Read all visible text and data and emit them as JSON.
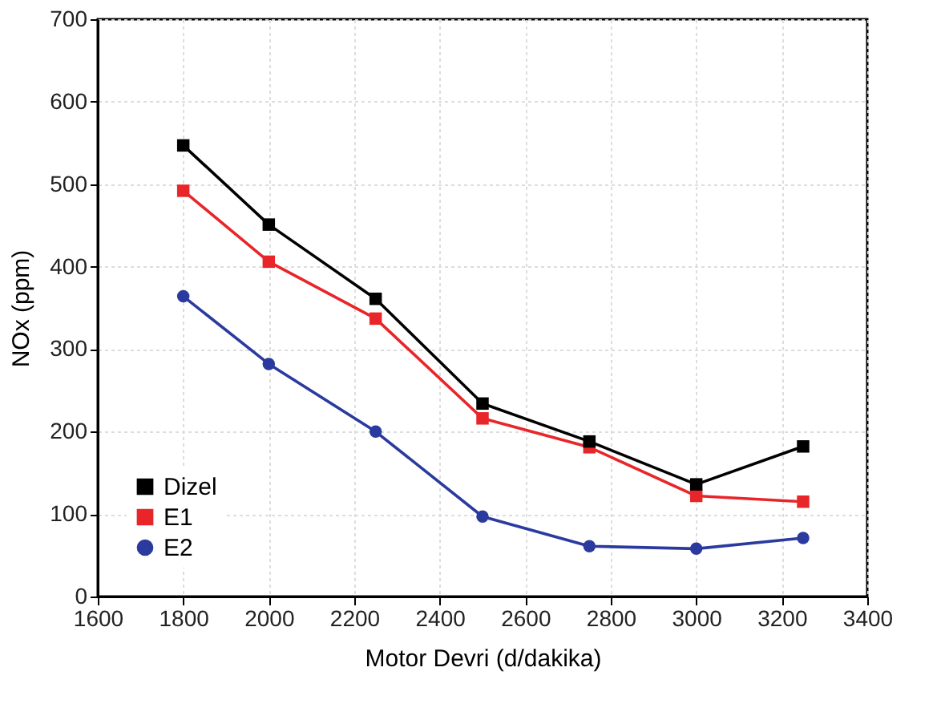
{
  "chart_data": {
    "type": "line",
    "xlabel": "Motor Devri   (d/dakika)",
    "ylabel": "NOx (ppm)",
    "x": [
      1800,
      2000,
      2250,
      2500,
      2750,
      3000,
      3250
    ],
    "series": [
      {
        "name": "Dizel",
        "color": "#000000",
        "marker": "square",
        "values": [
          547,
          451,
          361,
          234,
          188,
          136,
          182
        ]
      },
      {
        "name": "E1",
        "color": "#e8262a",
        "marker": "square",
        "values": [
          492,
          406,
          337,
          216,
          181,
          122,
          115
        ]
      },
      {
        "name": "E2",
        "color": "#2b3a9e",
        "marker": "circle",
        "values": [
          364,
          282,
          200,
          97,
          61,
          58,
          71
        ]
      }
    ],
    "xlim": [
      1600,
      3400
    ],
    "xticks": [
      1600,
      1800,
      2000,
      2200,
      2400,
      2600,
      2800,
      3000,
      3200,
      3400
    ],
    "ylim": [
      0,
      700
    ],
    "yticks": [
      0,
      100,
      200,
      300,
      400,
      500,
      600,
      700
    ],
    "grid": true,
    "legend": "bottom left",
    "line_style": "solid"
  }
}
